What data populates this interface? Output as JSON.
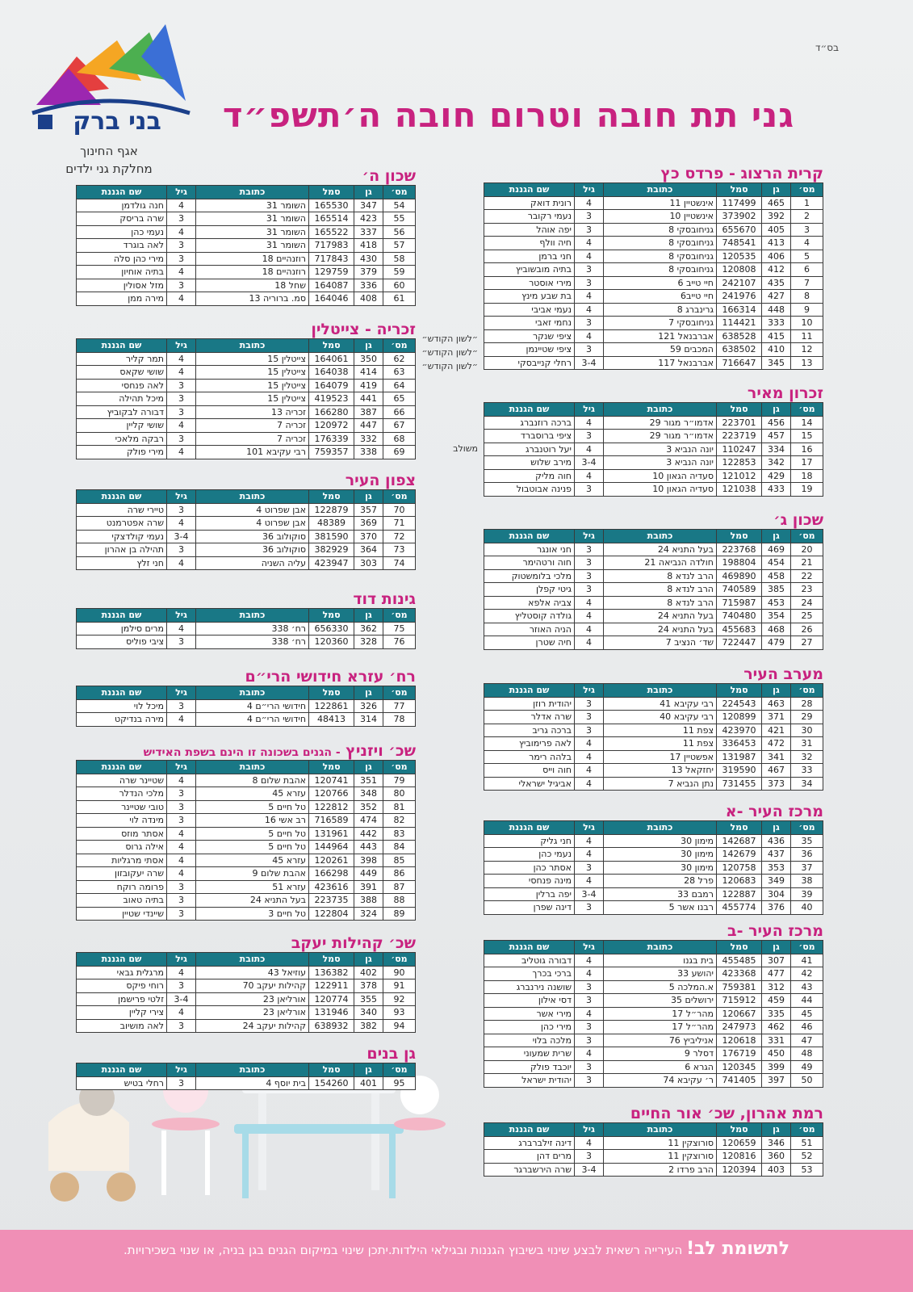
{
  "header": {
    "blessing": "בס״ד",
    "title": "גני תת חובה וטרום חובה ה׳תשפ״ד",
    "logo_text": "בני ברק",
    "department": "אגף החינוך",
    "division": "מחלקת גני ילדים"
  },
  "table_headers": [
    "מס׳",
    "גן",
    "סמל",
    "כתובת",
    "גיל",
    "שם הגננת"
  ],
  "sections": [
    {
      "title": "קרית הרצוג - פרדס כץ",
      "rows": [
        [
          1,
          465,
          117499,
          "אינשטיין 11",
          4,
          "רונית דואק"
        ],
        [
          2,
          392,
          373902,
          "אינשטיין 10",
          3,
          "נעמי רקובר"
        ],
        [
          3,
          405,
          655670,
          "גניחובסקי 8",
          3,
          "יפה אוהל"
        ],
        [
          4,
          413,
          748541,
          "גניחובסקי 8",
          4,
          "חיה וולף"
        ],
        [
          5,
          406,
          120535,
          "גניחובסקי 8",
          4,
          "חני ברמן"
        ],
        [
          6,
          412,
          120808,
          "גניחובסקי 8",
          3,
          "בתיה מובשוביץ"
        ],
        [
          7,
          435,
          242107,
          "חיי טייב 6",
          3,
          "מירי אוסטר"
        ],
        [
          8,
          427,
          241976,
          "חיי טייב6",
          4,
          "בת שבע מינץ"
        ],
        [
          9,
          448,
          166314,
          "גרינברג 8",
          4,
          "נעמי אביבי"
        ],
        [
          10,
          333,
          114421,
          "גניחובסקי 7",
          3,
          "נחמי זאבי"
        ],
        [
          11,
          415,
          638528,
          "אברבנאל 121",
          4,
          "ציפי שנקר",
          "״לשון הקודש״"
        ],
        [
          12,
          410,
          638502,
          "המכבים 59",
          3,
          "ציפי שטיינמן",
          "״לשון הקודש״"
        ],
        [
          13,
          345,
          716647,
          "אברבנאל 117",
          "3-4",
          "רחלי קנייבסקי",
          "״לשון הקודש״"
        ]
      ]
    },
    {
      "title": "זכרון מאיר",
      "rows": [
        [
          14,
          456,
          223701,
          "אדמו״ר מגור 29",
          4,
          "ברכה רוזנברג"
        ],
        [
          15,
          457,
          223719,
          "אדמו״ר מגור 29",
          3,
          "ציפי ברוסברד"
        ],
        [
          16,
          334,
          110247,
          "יונה הנביא 3",
          4,
          "יעל רוטנברג",
          "משולב"
        ],
        [
          17,
          342,
          122853,
          "יונה הנביא 3",
          "3-4",
          "מירב שלוש"
        ],
        [
          18,
          429,
          121012,
          "סעדיה הגאון 10",
          4,
          "חוה מליק"
        ],
        [
          19,
          433,
          121038,
          "סעדיה הגאון 10",
          3,
          "פנינה אבוטבול"
        ]
      ]
    },
    {
      "title": "שכון ג׳",
      "rows": [
        [
          20,
          469,
          223768,
          "בעל התניא 24",
          3,
          "חני אונגר"
        ],
        [
          21,
          454,
          198804,
          "חולדה הנביאה 21",
          3,
          "חוה ורטהימר"
        ],
        [
          22,
          458,
          469890,
          "הרב לנדא 8",
          3,
          "מלכי בלומשטוק"
        ],
        [
          23,
          385,
          740589,
          "הרב לנדא 8",
          3,
          "גיטי קפלן"
        ],
        [
          24,
          453,
          715987,
          "הרב לנדא 8",
          4,
          "צביה אלפא"
        ],
        [
          25,
          354,
          740480,
          "בעל התניא 24",
          4,
          "גולדה קוסטליץ"
        ],
        [
          26,
          468,
          455683,
          "בעל התניא 24",
          4,
          "הניה האוזר"
        ],
        [
          27,
          479,
          722447,
          "שד׳ הנציב 7",
          4,
          "חיה שטרן"
        ]
      ]
    },
    {
      "title": "מערב העיר",
      "rows": [
        [
          28,
          463,
          224543,
          "רבי עקיבא 41",
          3,
          "יהודית רוזן"
        ],
        [
          29,
          371,
          120899,
          "רבי עקיבא 40",
          3,
          "שרה אדלר"
        ],
        [
          30,
          421,
          423970,
          "צפת 11",
          3,
          "ברכה גריב"
        ],
        [
          31,
          472,
          336453,
          "צפת 11",
          4,
          "לאה פרימוביץ"
        ],
        [
          32,
          341,
          131987,
          "אפשטיין 17",
          4,
          "בלהה רימר"
        ],
        [
          33,
          467,
          319590,
          "יחזקאל 13",
          4,
          "חוה וייס"
        ],
        [
          34,
          373,
          731455,
          "נתן הנביא 7",
          4,
          "אביגיל ישראלי"
        ]
      ]
    },
    {
      "title": "מרכז העיר -א",
      "rows": [
        [
          35,
          436,
          142687,
          "מימון 30",
          4,
          "חני גליק"
        ],
        [
          36,
          437,
          142679,
          "מימון 30",
          4,
          "נעמי כהן"
        ],
        [
          37,
          353,
          120758,
          "מימון 30",
          3,
          "אסתר כהן"
        ],
        [
          38,
          349,
          120683,
          "פרל 28",
          4,
          "מינה פנחסי"
        ],
        [
          39,
          304,
          122887,
          "רמבם 33",
          "3-4",
          "יפה ברלין"
        ],
        [
          40,
          376,
          455774,
          "רבנו אשר 5",
          3,
          "דינה שפרן"
        ]
      ]
    },
    {
      "title": "מרכז העיר -ב",
      "rows": [
        [
          41,
          307,
          455485,
          "בית בגנו",
          4,
          "דבורה גוטליב"
        ],
        [
          42,
          477,
          423368,
          "יהושע 33",
          4,
          "ברכי בכרך"
        ],
        [
          43,
          312,
          759381,
          "א.המלכה 5",
          3,
          "שושנה נירנברג"
        ],
        [
          44,
          459,
          715912,
          "ירושלים 35",
          3,
          "דסי אילון"
        ],
        [
          45,
          335,
          120667,
          "מהר״ל 17",
          4,
          "מירי אשר"
        ],
        [
          46,
          462,
          247973,
          "מהר״ל 17",
          3,
          "מירי כהן"
        ],
        [
          47,
          331,
          120618,
          "אניליביץ 76",
          3,
          "מלכה בלוי"
        ],
        [
          48,
          450,
          176719,
          "דסלר 9",
          4,
          "שרית שמעוני"
        ],
        [
          49,
          399,
          120345,
          "הגרא 6",
          3,
          "יוכבד פולק"
        ],
        [
          50,
          397,
          741405,
          "ר׳ עקיבא 74",
          3,
          "יהודית ישראל"
        ]
      ]
    },
    {
      "title": "רמת אהרון, שכ׳ אור החיים",
      "rows": [
        [
          51,
          346,
          120659,
          "סורוצקין 11",
          4,
          "דינה זילברברג"
        ],
        [
          52,
          360,
          120816,
          "סורוצקין 11",
          3,
          "מרים דהן"
        ],
        [
          53,
          403,
          120394,
          "הרב פרדו 2",
          "3-4",
          "שרה הירשברגר"
        ]
      ]
    },
    {
      "title": "שכון ה׳",
      "rows": [
        [
          54,
          347,
          165530,
          "השומר 31",
          4,
          "חנה גולדמן"
        ],
        [
          55,
          423,
          165514,
          "השומר 31",
          3,
          "שרה בריסק"
        ],
        [
          56,
          337,
          165522,
          "השומר 31",
          4,
          "נעמי כהן"
        ],
        [
          57,
          418,
          717983,
          "השומר 31",
          3,
          "לאה בוגרד"
        ],
        [
          58,
          430,
          717843,
          "רוזנהיים 18",
          3,
          "מירי כהן סלה"
        ],
        [
          59,
          379,
          129759,
          "רוזנהיים 18",
          4,
          "בתיה אוחיון"
        ],
        [
          60,
          336,
          164087,
          "שחל 18",
          3,
          "מזל אסולין"
        ],
        [
          61,
          408,
          164046,
          "סמ. ברוריה 13",
          4,
          "מירה ממן"
        ]
      ]
    },
    {
      "title": "זכריה - צייטלין",
      "rows": [
        [
          62,
          350,
          164061,
          "צייטלין 15",
          4,
          "תמר קליר"
        ],
        [
          63,
          414,
          164038,
          "צייטלין 15",
          4,
          "שושי שקאס"
        ],
        [
          64,
          419,
          164079,
          "צייטלין 15",
          3,
          "לאה פנחסי"
        ],
        [
          65,
          441,
          419523,
          "צייטלין 15",
          3,
          "מיכל תהילה"
        ],
        [
          66,
          387,
          166280,
          "זכריה 13",
          3,
          "דבורה לבקוביץ"
        ],
        [
          67,
          447,
          120972,
          "זכריה 7",
          4,
          "שושי קליין"
        ],
        [
          68,
          332,
          176339,
          "זכריה 7",
          3,
          "רבקה מלאכי"
        ],
        [
          69,
          338,
          759357,
          "רבי עקיבא 101",
          4,
          "מירי פולק"
        ]
      ]
    },
    {
      "title": "צפון העיר",
      "rows": [
        [
          70,
          357,
          122879,
          "אבן שפרוט 4",
          3,
          "טיירי שרה"
        ],
        [
          71,
          369,
          48389,
          "אבן שפרוט 4",
          4,
          "שרה אפטרמנט"
        ],
        [
          72,
          370,
          381590,
          "סוקולוב 36",
          "3-4",
          "נעמי קולדצקי"
        ],
        [
          73,
          364,
          382929,
          "סוקולוב 36",
          3,
          "תהילה בן אהרון"
        ],
        [
          74,
          303,
          423947,
          "עליה השניה",
          4,
          "חני זלץ"
        ]
      ]
    },
    {
      "title": "גינות דוד",
      "rows": [
        [
          75,
          362,
          656330,
          "רח׳ 338",
          4,
          "מרים סילמן"
        ],
        [
          76,
          328,
          120360,
          "רח׳ 338",
          3,
          "ציבי פוליס"
        ]
      ]
    },
    {
      "title": "רח׳ עזרא חידושי הרי״ם",
      "rows": [
        [
          77,
          326,
          122861,
          "חידושי הרי״ם 4",
          3,
          "מיכל לוי"
        ],
        [
          78,
          314,
          48413,
          "חידושי הרי״ם 4",
          4,
          "מירה בנדיקט"
        ]
      ]
    },
    {
      "title": "שכ׳ ויזניץ",
      "subtitle": "- הגנים בשכונה זו הינם בשפת האידיש",
      "rows": [
        [
          79,
          351,
          120741,
          "אהבת שלום 8",
          4,
          "שטיינר שרה"
        ],
        [
          80,
          348,
          120766,
          "עזרא 45",
          3,
          "מלכי הנדלר"
        ],
        [
          81,
          352,
          122812,
          "טל חיים 5",
          3,
          "טובי שטיינר"
        ],
        [
          82,
          474,
          716589,
          "רב אשי 16",
          3,
          "מינדה לוי"
        ],
        [
          83,
          442,
          131961,
          "טל חיים 5",
          4,
          "אסתר מוזס"
        ],
        [
          84,
          443,
          144964,
          "טל חיים 5",
          4,
          "אילה גרוס"
        ],
        [
          85,
          398,
          120261,
          "עזרא 45",
          4,
          "אסתי מרגליות"
        ],
        [
          86,
          449,
          166298,
          "אהבת שלום 9",
          4,
          "שרה יעקובזון"
        ],
        [
          87,
          391,
          423616,
          "עזרא 51",
          3,
          "פרומה רוקח"
        ],
        [
          88,
          388,
          223735,
          "בעל התניא 24",
          3,
          "בתיה טאוב"
        ],
        [
          89,
          324,
          122804,
          "טל חיים 3",
          3,
          "שיינדי שטיין"
        ]
      ]
    },
    {
      "title": "שכ׳ קהילות יעקב",
      "rows": [
        [
          90,
          402,
          136382,
          "עוזיאל 43",
          4,
          "מרגלית גבאי"
        ],
        [
          91,
          378,
          122911,
          "קהילות יעקב 70",
          3,
          "רוחי פיקס"
        ],
        [
          92,
          355,
          120774,
          "אורליאן 23",
          "3-4",
          "זלטי פרישמן"
        ],
        [
          93,
          340,
          131946,
          "אורליאן 23",
          4,
          "צירי קליין"
        ],
        [
          94,
          382,
          638932,
          "קהילות יעקב 24",
          3,
          "לאה מושיוב"
        ]
      ]
    },
    {
      "title": "גן בנים",
      "rows": [
        [
          95,
          401,
          154260,
          "בית יוסף 4",
          3,
          "רחלי בטיש"
        ]
      ]
    }
  ],
  "footer": {
    "attention": "לתשומת לב!",
    "text": "העירייה רשאית לבצע שינוי בשיבוץ הגננות ובגילאי הילדות.יתכן שינוי במיקום הגנים בגן בניה, או שנוי בשכירויות."
  }
}
